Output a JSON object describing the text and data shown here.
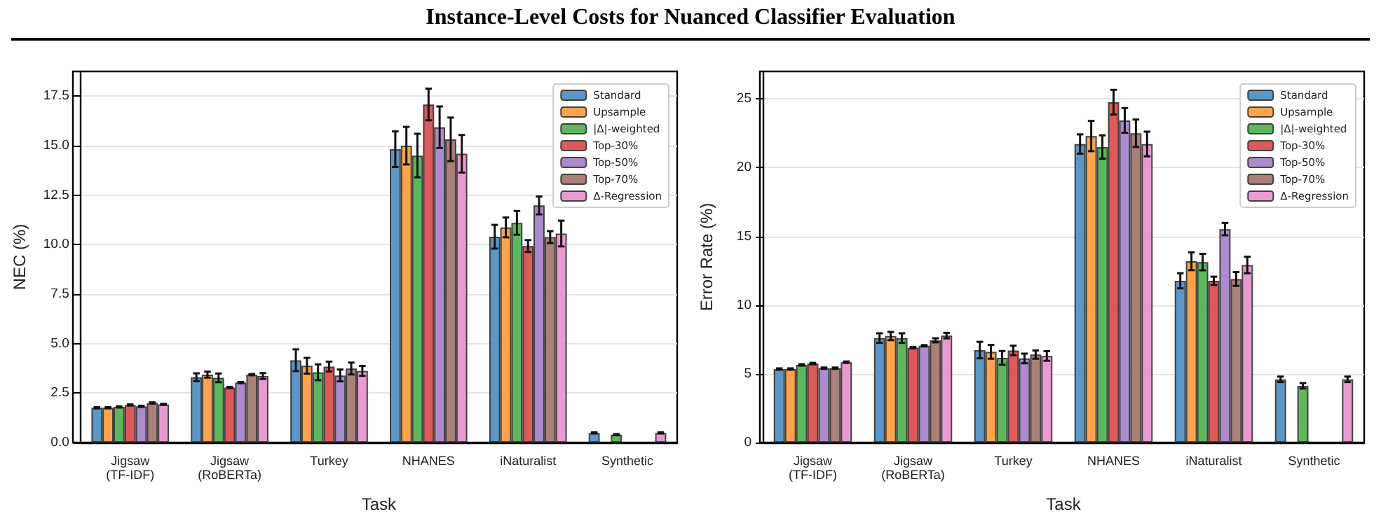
{
  "chart_data": [
    {
      "type": "bar",
      "annotations": [
        "Instance-Level Costs for Nuanced Classifier Evaluation"
      ],
      "xlabel": "Task",
      "ylabel": "NEC (%)",
      "categories": [
        "Jigsaw\n(TF-IDF)",
        "Jigsaw\n(RoBERTa)",
        "Turkey",
        "NHANES",
        "iNaturalist",
        "Synthetic"
      ],
      "ylim": [
        0,
        18.75
      ],
      "yticks": [
        {
          "value": 0,
          "label": "0.0"
        },
        {
          "value": 2.5,
          "label": "2.5"
        },
        {
          "value": 5,
          "label": "5.0"
        },
        {
          "value": 7.5,
          "label": "7.5"
        },
        {
          "value": 10,
          "label": "10.0"
        },
        {
          "value": 12.5,
          "label": "12.5"
        },
        {
          "value": 15,
          "label": "15.0"
        },
        {
          "value": 17.5,
          "label": "17.5"
        }
      ],
      "grid": "y",
      "legend": "top right",
      "series": [
        {
          "name": "Standard",
          "color": "#4a8cc0",
          "values": [
            1.76,
            3.3,
            4.16,
            14.82,
            10.4,
            0.49
          ],
          "errors": [
            0.03,
            0.2,
            0.55,
            0.9,
            0.6,
            0.03
          ]
        },
        {
          "name": "Upsample",
          "color": "#ff9a3a",
          "values": [
            1.76,
            3.43,
            3.88,
            15.0,
            10.87,
            null
          ],
          "errors": [
            0.03,
            0.15,
            0.4,
            0.95,
            0.5,
            null
          ]
        },
        {
          "name": "|Δ|-weighted",
          "color": "#4cae4c",
          "values": [
            1.8,
            3.27,
            3.55,
            14.5,
            11.1,
            0.4
          ],
          "errors": [
            0.03,
            0.22,
            0.4,
            1.1,
            0.6,
            0.03
          ]
        },
        {
          "name": "Top-30%",
          "color": "#d94848",
          "values": [
            1.9,
            2.78,
            3.84,
            17.08,
            9.93,
            null
          ],
          "errors": [
            0.03,
            0.03,
            0.25,
            0.8,
            0.3,
            null
          ]
        },
        {
          "name": "Top-50%",
          "color": "#a37fc6",
          "values": [
            1.83,
            3.03,
            3.39,
            15.93,
            11.98,
            null
          ],
          "errors": [
            0.03,
            0.03,
            0.3,
            1.05,
            0.45,
            null
          ]
        },
        {
          "name": "Top-70%",
          "color": "#a0736a",
          "values": [
            2.0,
            3.43,
            3.74,
            15.32,
            10.38,
            null
          ],
          "errors": [
            0.03,
            0.03,
            0.3,
            1.1,
            0.3,
            null
          ]
        },
        {
          "name": "Δ-Regression",
          "color": "#e690cc",
          "values": [
            1.93,
            3.36,
            3.62,
            14.59,
            10.56,
            0.49
          ],
          "errors": [
            0.03,
            0.15,
            0.25,
            0.95,
            0.65,
            0.03
          ]
        }
      ]
    },
    {
      "type": "bar",
      "xlabel": "Task",
      "ylabel": "Error Rate (%)",
      "categories": [
        "Jigsaw\n(TF-IDF)",
        "Jigsaw\n(RoBERTa)",
        "Turkey",
        "NHANES",
        "iNaturalist",
        "Synthetic"
      ],
      "ylim": [
        0,
        27
      ],
      "yticks": [
        0,
        5,
        10,
        15,
        20,
        25
      ],
      "grid": "y",
      "legend": "top right",
      "series": [
        {
          "name": "Standard",
          "color": "#4a8cc0",
          "values": [
            5.35,
            7.6,
            6.73,
            21.72,
            11.77,
            4.6
          ],
          "errors": [
            0.05,
            0.35,
            0.6,
            0.7,
            0.55,
            0.2
          ]
        },
        {
          "name": "Upsample",
          "color": "#ff9a3a",
          "values": [
            5.35,
            7.75,
            6.6,
            22.3,
            13.19,
            null
          ],
          "errors": [
            0.05,
            0.3,
            0.5,
            1.1,
            0.65,
            null
          ]
        },
        {
          "name": "|Δ|-weighted",
          "color": "#4cae4c",
          "values": [
            5.65,
            7.6,
            6.16,
            21.5,
            13.13,
            4.13
          ],
          "errors": [
            0.05,
            0.35,
            0.5,
            0.85,
            0.6,
            0.2
          ]
        },
        {
          "name": "Top-30%",
          "color": "#d94848",
          "values": [
            5.75,
            6.9,
            6.7,
            24.76,
            11.77,
            null
          ],
          "errors": [
            0.05,
            0.05,
            0.35,
            0.9,
            0.3,
            null
          ]
        },
        {
          "name": "Top-50%",
          "color": "#a37fc6",
          "values": [
            5.41,
            7.04,
            6.12,
            23.44,
            15.53,
            null
          ],
          "errors": [
            0.05,
            0.05,
            0.35,
            0.9,
            0.45,
            null
          ]
        },
        {
          "name": "Top-70%",
          "color": "#a0736a",
          "values": [
            5.41,
            7.44,
            6.4,
            22.5,
            11.9,
            null
          ],
          "errors": [
            0.05,
            0.15,
            0.3,
            1.0,
            0.5,
            null
          ]
        },
        {
          "name": "Δ-Regression",
          "color": "#e690cc",
          "values": [
            5.85,
            7.78,
            6.3,
            21.72,
            12.92,
            4.6
          ],
          "errors": [
            0.05,
            0.2,
            0.35,
            0.9,
            0.6,
            0.2
          ]
        }
      ]
    }
  ]
}
